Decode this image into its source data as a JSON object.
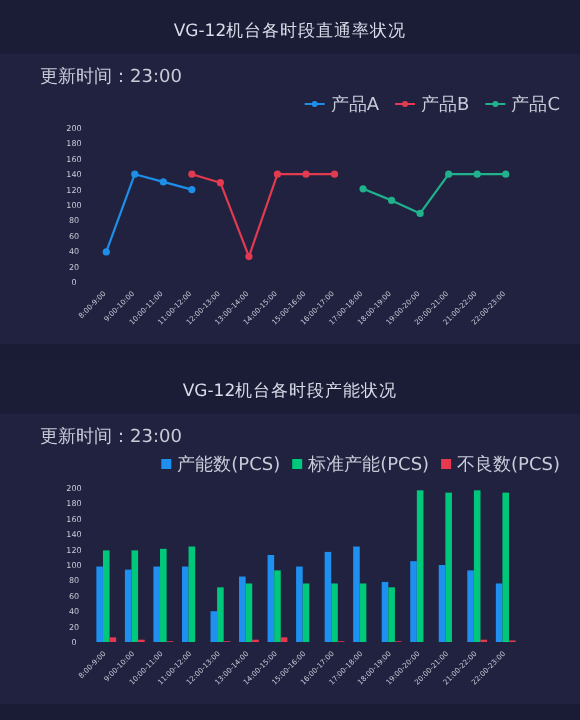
{
  "chart_data": [
    {
      "type": "line",
      "title": "VG-12机台各时段直通率状况",
      "subtitle": "更新时间：23:00",
      "categories": [
        "8:00-9:00",
        "9:00-10:00",
        "10:00-11:00",
        "11:00-12:00",
        "12:00-13:00",
        "13:00-14:00",
        "14:00-15:00",
        "15:00-16:00",
        "16:00-17:00",
        "17:00-18:00",
        "18:00-19:00",
        "19:00-20:00",
        "20:00-21:00",
        "21:00-22:00",
        "22:00-23:00"
      ],
      "series": [
        {
          "name": "产品A",
          "color": "#1e8fe8",
          "values": [
            39,
            140,
            130,
            120,
            null,
            null,
            null,
            null,
            null,
            null,
            null,
            null,
            null,
            null,
            null
          ]
        },
        {
          "name": "产品B",
          "color": "#e23a50",
          "values": [
            null,
            null,
            null,
            140,
            129,
            33,
            140,
            140,
            140,
            null,
            null,
            null,
            null,
            null,
            null
          ]
        },
        {
          "name": "产品C",
          "color": "#1fb28c",
          "values": [
            null,
            null,
            null,
            null,
            null,
            null,
            null,
            null,
            null,
            121,
            106,
            89,
            140,
            140,
            140
          ]
        }
      ],
      "ylim": [
        0,
        200
      ],
      "yticks": [
        0,
        20,
        40,
        60,
        80,
        100,
        120,
        140,
        160,
        180,
        200
      ],
      "legend": "top right",
      "marker": "circle"
    },
    {
      "type": "bar",
      "title": "VG-12机台各时段产能状况",
      "subtitle": "更新时间：23:00",
      "categories": [
        "8:00-9:00",
        "9:00-10:00",
        "10:00-11:00",
        "11:00-12:00",
        "12:00-13:00",
        "13:00-14:00",
        "14:00-15:00",
        "15:00-16:00",
        "16:00-17:00",
        "17:00-18:00",
        "18:00-19:00",
        "19:00-20:00",
        "20:00-21:00",
        "21:00-22:00",
        "22:00-23:00"
      ],
      "series": [
        {
          "name": "产能数(PCS)",
          "color": "#1e90f0",
          "values": [
            98,
            94,
            98,
            98,
            40,
            85,
            113,
            98,
            117,
            124,
            78,
            105,
            100,
            93,
            76
          ]
        },
        {
          "name": "标准产能(PCS)",
          "color": "#00c87a",
          "values": [
            119,
            119,
            121,
            124,
            71,
            76,
            93,
            76,
            76,
            76,
            71,
            197,
            194,
            197,
            194
          ]
        },
        {
          "name": "不良数(PCS)",
          "color": "#e8384f",
          "values": [
            6,
            3,
            1,
            null,
            1,
            3,
            6,
            null,
            1,
            null,
            1,
            null,
            null,
            3,
            2
          ]
        }
      ],
      "ylim": [
        0,
        200
      ],
      "yticks": [
        0,
        20,
        40,
        60,
        80,
        100,
        120,
        140,
        160,
        180,
        200
      ],
      "legend": "top right"
    }
  ]
}
